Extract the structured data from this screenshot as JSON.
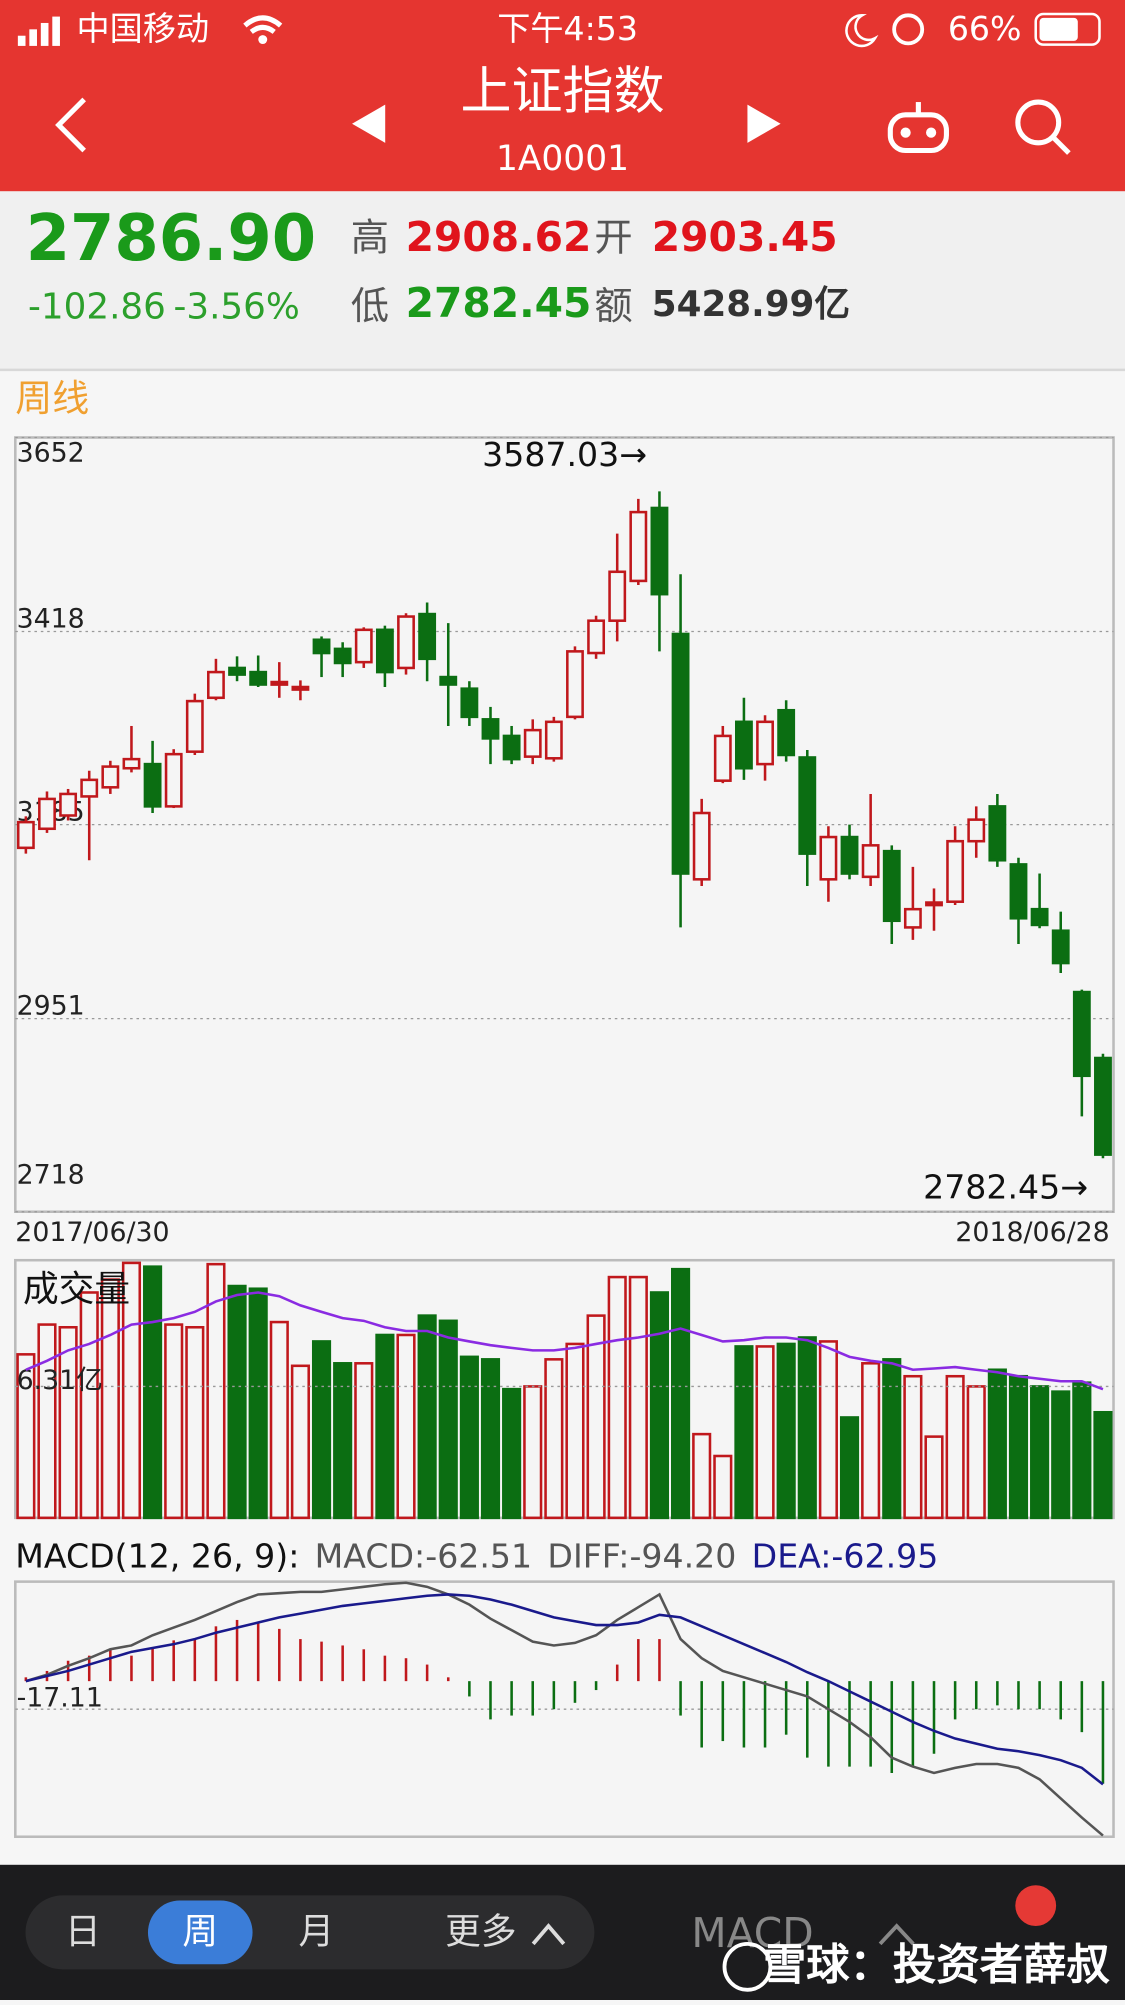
{
  "status_bar": {
    "carrier": "中国移动",
    "time": "下午4:53",
    "battery": "66%"
  },
  "header": {
    "title": "上证指数",
    "code": "1A0001"
  },
  "quote": {
    "price": "2786.90",
    "change": "-102.86",
    "change_pct": "-3.56%",
    "high_label": "高",
    "high": "2908.62",
    "open_label": "开",
    "open": "2903.45",
    "low_label": "低",
    "low": "2782.45",
    "amount_label": "额",
    "amount": "5428.99亿"
  },
  "period_label": "周线",
  "chart_data": [
    {
      "type": "candlestick",
      "up_color": "#c0181c",
      "down_color": "#0b6e12",
      "open": [
        3157,
        3180,
        3196,
        3219,
        3230,
        3253,
        3258,
        3207,
        3273,
        3338,
        3374,
        3369,
        3354,
        3348,
        3408,
        3397,
        3381,
        3420,
        3374,
        3439,
        3363,
        3349,
        3312,
        3292,
        3267,
        3265,
        3315,
        3392,
        3431,
        3479,
        3567,
        3415,
        3119,
        3238,
        3309,
        3258,
        3323,
        3266,
        3119,
        3170,
        3122,
        3153,
        3061,
        3088,
        3092,
        3165,
        3207,
        3137,
        3083,
        3057,
        2983,
        2903.45
      ],
      "high": [
        3195,
        3225,
        3228,
        3250,
        3262,
        3304,
        3286,
        3276,
        3343,
        3385,
        3388,
        3389,
        3381,
        3359,
        3412,
        3405,
        3423,
        3425,
        3440,
        3453,
        3428,
        3358,
        3327,
        3304,
        3312,
        3315,
        3400,
        3437,
        3536,
        3578,
        3587.03,
        3487,
        3216,
        3304,
        3338,
        3317,
        3335,
        3275,
        3183,
        3185,
        3222,
        3160,
        3134,
        3108,
        3183,
        3207,
        3222,
        3145,
        3126,
        3080,
        2986,
        2908.62
      ],
      "low": [
        3150,
        3175,
        3190,
        3142,
        3222,
        3248,
        3199,
        3205,
        3269,
        3335,
        3358,
        3351,
        3338,
        3335,
        3363,
        3363,
        3374,
        3351,
        3366,
        3358,
        3304,
        3304,
        3258,
        3258,
        3258,
        3261,
        3312,
        3385,
        3406,
        3474,
        3394,
        3061,
        3111,
        3235,
        3239,
        3238,
        3261,
        3111,
        3092,
        3119,
        3111,
        3041,
        3046,
        3057,
        3088,
        3145,
        3134,
        3041,
        3060,
        3006,
        2833,
        2782.45
      ],
      "close": [
        3188,
        3216,
        3222,
        3239,
        3255,
        3264,
        3207,
        3270,
        3334,
        3369,
        3366,
        3354,
        3357,
        3351,
        3392,
        3380,
        3420,
        3369,
        3436,
        3385,
        3354,
        3315,
        3289,
        3264,
        3299,
        3309,
        3394,
        3431,
        3490,
        3562,
        3463,
        3126,
        3199,
        3292,
        3253,
        3309,
        3269,
        3150,
        3170,
        3126,
        3160,
        3069,
        3083,
        3091,
        3165,
        3191,
        3142,
        3072,
        3064,
        3018,
        2882,
        2786.9
      ],
      "ylim": [
        2718,
        3652
      ],
      "yticks": [
        3652,
        3418,
        3185,
        2951,
        2718
      ],
      "grid": true,
      "annotations": [
        "3587.03→",
        "2782.45→"
      ],
      "x_labels": [
        "2017/06/30",
        "2018/06/28"
      ]
    },
    {
      "type": "bar",
      "title": "成交量",
      "up_color": "#c0181c",
      "down_color": "#0b6e12",
      "values": [
        7.85,
        9.28,
        9.15,
        10.82,
        11.44,
        12.24,
        12.06,
        9.28,
        9.15,
        12.18,
        11.13,
        11.0,
        9.4,
        7.3,
        8.47,
        7.42,
        7.42,
        8.78,
        8.78,
        9.71,
        9.46,
        7.73,
        7.61,
        6.18,
        6.31,
        7.61,
        8.35,
        9.71,
        11.56,
        11.56,
        10.82,
        11.94,
        4.02,
        2.97,
        8.23,
        8.23,
        8.35,
        8.66,
        8.47,
        4.82,
        7.42,
        7.61,
        6.8,
        3.9,
        6.8,
        6.31,
        7.11,
        6.8,
        6.31,
        6.06,
        6.49,
        5.07
      ],
      "ma_color": "#8a2be2",
      "ma_values": [
        7.11,
        7.54,
        8.04,
        8.35,
        8.78,
        9.28,
        9.4,
        9.59,
        9.89,
        10.39,
        10.7,
        10.82,
        10.64,
        10.2,
        9.89,
        9.59,
        9.46,
        9.15,
        8.97,
        8.97,
        8.66,
        8.47,
        8.29,
        8.16,
        8.04,
        8.04,
        8.16,
        8.35,
        8.53,
        8.66,
        8.84,
        9.09,
        8.78,
        8.47,
        8.53,
        8.66,
        8.66,
        8.53,
        8.16,
        7.73,
        7.54,
        7.42,
        7.11,
        7.17,
        7.24,
        7.11,
        6.99,
        6.8,
        6.68,
        6.56,
        6.56,
        6.18
      ],
      "ylim": [
        0,
        12.37
      ],
      "yticks": [
        {
          "value": 6.31,
          "label": "6.31亿"
        }
      ],
      "grid": true
    },
    {
      "type": "macd",
      "title": "MACD(12, 26, 9):",
      "series": [
        {
          "name": "MACD:-62.51",
          "type": "bar",
          "color": "#555555",
          "up_color": "#c0181c",
          "down_color": "#0b6e12",
          "values": [
            2.33,
            6.22,
            12.44,
            15.55,
            19.44,
            15.55,
            20.22,
            24.88,
            25.66,
            33.44,
            37.33,
            35.77,
            31.88,
            25.66,
            24.11,
            21.77,
            19.44,
            15.55,
            13.99,
            10.11,
            2.33,
            -9.33,
            -23.33,
            -20.99,
            -20.99,
            -17.11,
            -13.22,
            -5.44,
            10.11,
            25.66,
            25.66,
            -20.99,
            -40.44,
            -36.55,
            -40.44,
            -40.44,
            -32.66,
            -46.66,
            -52.1,
            -52.1,
            -52.1,
            -55.99,
            -52.1,
            -44.32,
            -23.33,
            -17.11,
            -14.77,
            -17.11,
            -17.11,
            -23.33,
            -31.1,
            -62.51
          ]
        },
        {
          "name": "DIFF:-94.20",
          "type": "line",
          "color": "#555555",
          "values": [
            0,
            3.89,
            9.33,
            14.0,
            19.44,
            21.77,
            28.0,
            32.66,
            37.33,
            42.77,
            48.21,
            52.88,
            53.65,
            54.43,
            54.43,
            55.99,
            57.54,
            59.1,
            60.0,
            57.54,
            52.88,
            46.66,
            38.1,
            31.1,
            24.11,
            21.77,
            23.33,
            27.99,
            37.33,
            45.1,
            52.88,
            25.66,
            14.0,
            6.22,
            2.33,
            -1.56,
            -5.44,
            -9.33,
            -17.11,
            -24.88,
            -34.21,
            -46.66,
            -52.1,
            -55.99,
            -52.88,
            -50.54,
            -50.54,
            -52.88,
            -59.88,
            -71.54,
            -83.2,
            -94.2
          ]
        },
        {
          "name": "DEA:-62.95",
          "type": "line",
          "color": "#1a1a8c",
          "values": [
            0,
            3.11,
            6.22,
            10.11,
            14.0,
            17.88,
            20.22,
            22.55,
            25.66,
            29.55,
            32.66,
            35.77,
            38.88,
            41.21,
            43.55,
            45.88,
            47.43,
            48.99,
            50.54,
            52.1,
            52.88,
            52.1,
            49.77,
            46.66,
            42.77,
            38.88,
            36.55,
            34.21,
            34.21,
            35.77,
            40.44,
            38.88,
            33.44,
            27.99,
            22.55,
            17.11,
            11.66,
            5.44,
            0,
            -6.22,
            -12.44,
            -18.66,
            -24.88,
            -30.33,
            -34.99,
            -38.1,
            -41.21,
            -42.77,
            -45.1,
            -48.21,
            -52.88,
            -62.95
          ]
        }
      ],
      "ylim": [
        -94.9,
        60.7
      ],
      "yticks": [
        -17.11
      ],
      "grid": true
    }
  ],
  "bottom_bar": {
    "tabs": [
      "日",
      "周",
      "月",
      "更多"
    ],
    "indicator": "MACD"
  },
  "watermark": "雪球：投资者薛叔"
}
